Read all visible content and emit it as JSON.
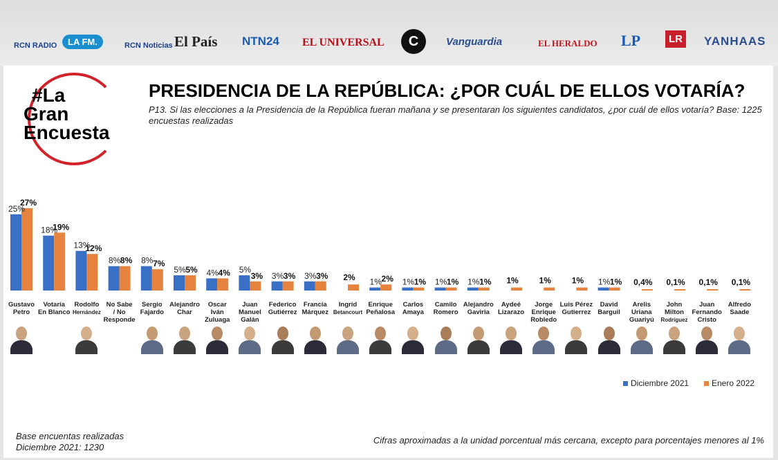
{
  "brands": [
    "RCN RADIO",
    "LA FM.",
    "RCN Noticias",
    "El País",
    "NTN24",
    "EL UNIVERSAL",
    "C",
    "Vanguardia",
    "EL HERALDO",
    "LP",
    "LR",
    "YANHAAS"
  ],
  "logo": {
    "line1": "#La",
    "line2": "Gran",
    "line3": "Encuesta"
  },
  "title": "PRESIDENCIA DE LA REPÚBLICA: ¿POR CUÁL DE ELLOS VOTARÍA?",
  "question": "P13. Si las elecciones a la Presidencia de la República fueran mañana y se presentaran los siguientes candidatos, ¿por cuál de ellos votaría? Base: 1225  encuestas realizadas",
  "legend": {
    "s1": "Diciembre 2021",
    "s2": "Enero 2022"
  },
  "colors": {
    "s1": "#3a6fc6",
    "s2": "#e6843f",
    "logo_red": "#d2232a"
  },
  "footer_left_1": "Base encuentas realizadas",
  "footer_left_2": "Diciembre 2021: 1230",
  "footer_right": "Cifras aproximadas a la unidad porcentual más cercana, excepto para porcentajes menores al 1%",
  "chart_data": {
    "type": "bar",
    "categories": [
      [
        "Gustavo",
        "Petro"
      ],
      [
        "Votaría",
        "En Blanco"
      ],
      [
        "Rodolfo",
        "Hernández"
      ],
      [
        "No Sabe",
        "/ No",
        "Responde"
      ],
      [
        "Sergio",
        "Fajardo"
      ],
      [
        "Alejandro",
        "Char"
      ],
      [
        "Oscar",
        "Iván",
        "Zuluaga"
      ],
      [
        "Juan",
        "Manuel",
        "Galán"
      ],
      [
        "Federico",
        "Gutiérrez"
      ],
      [
        "Francia",
        "Márquez"
      ],
      [
        "Ingrid",
        "Betancourt"
      ],
      [
        "Enrique",
        "Peñalosa"
      ],
      [
        "Carlos",
        "Amaya"
      ],
      [
        "Camilo",
        "Romero"
      ],
      [
        "Alejandro",
        "Gaviria"
      ],
      [
        "Aydeé",
        "Lizarazo"
      ],
      [
        "Jorge",
        "Enrique",
        "Robledo"
      ],
      [
        "Luis Pérez",
        "Gutierrez"
      ],
      [
        "David",
        "Barguil"
      ],
      [
        "Arelis",
        "Uriana",
        "Guariyú"
      ],
      [
        "John",
        "Milton",
        "Rodríguez"
      ],
      [
        "Juan",
        "Fernando",
        "Cristo"
      ],
      [
        "Alfredo",
        "Saade"
      ]
    ],
    "series": [
      {
        "name": "Diciembre 2021",
        "values": [
          25,
          18,
          13,
          8,
          8,
          5,
          4,
          5,
          3,
          3,
          null,
          1,
          1,
          1,
          1,
          null,
          null,
          null,
          1,
          null,
          null,
          null,
          null
        ],
        "labels": [
          "25%",
          "18%",
          "13%",
          "8%",
          "8%",
          "5%",
          "4%",
          "5%",
          "3%",
          "3%",
          "",
          "1%",
          "1%",
          "1%",
          "1%",
          "",
          "",
          "",
          "1%",
          "",
          "",
          "",
          ""
        ]
      },
      {
        "name": "Enero 2022",
        "values": [
          27,
          19,
          12,
          8,
          7,
          5,
          4,
          3,
          3,
          3,
          2,
          2,
          1,
          1,
          1,
          1,
          1,
          1,
          1,
          0.4,
          0.1,
          0.1,
          0.1
        ],
        "labels": [
          "27%",
          "19%",
          "12%",
          "8%",
          "7%",
          "5%",
          "4%",
          "3%",
          "3%",
          "3%",
          "2%",
          "2%",
          "1%",
          "1%",
          "1%",
          "1%",
          "1%",
          "1%",
          "1%",
          "0,4%",
          "0,1%",
          "0,1%",
          "0,1%"
        ]
      }
    ],
    "ylim": [
      0,
      27
    ],
    "legend_position": "bottom-right",
    "grid": false
  }
}
